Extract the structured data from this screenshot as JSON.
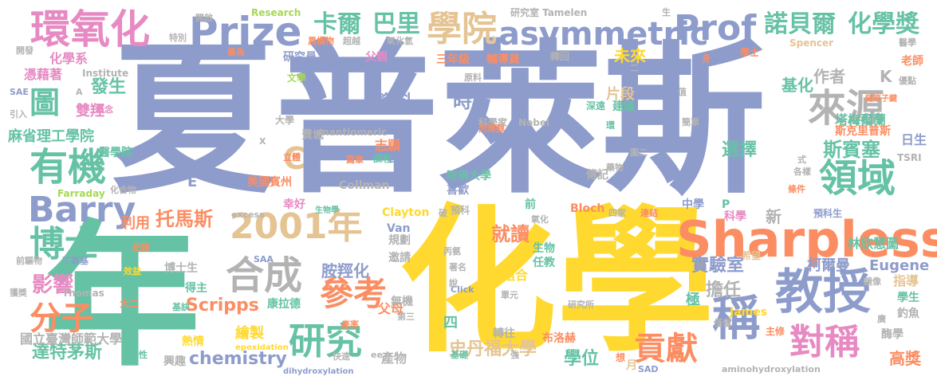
{
  "palette": {
    "blue": "#8e9ccb",
    "pink": "#e78ac3",
    "green": "#66c2a5",
    "orange": "#fc8d62",
    "yellow": "#ffd92f",
    "lime": "#a6d854",
    "tan": "#e5c494",
    "gray": "#b3b3b3"
  },
  "words": [
    {
      "text": "夏普萊斯",
      "color": "blue"
    },
    {
      "text": "化學",
      "color": "yellow"
    },
    {
      "text": "年",
      "color": "green"
    },
    {
      "text": "Sharpless",
      "color": "orange"
    },
    {
      "text": "2001年",
      "color": "tan"
    },
    {
      "text": "教授",
      "color": "blue"
    },
    {
      "text": "稱",
      "color": "blue"
    },
    {
      "text": "環氧化",
      "color": "pink"
    },
    {
      "text": "Prize",
      "color": "blue"
    },
    {
      "text": "asymmetric",
      "color": "blue"
    },
    {
      "text": "Prof",
      "color": "blue"
    },
    {
      "text": "學院",
      "color": "tan"
    },
    {
      "text": "有機",
      "color": "green"
    },
    {
      "text": "Barry",
      "color": "blue"
    },
    {
      "text": "博士",
      "color": "green"
    },
    {
      "text": "合成",
      "color": "gray"
    },
    {
      "text": "研究",
      "color": "green"
    },
    {
      "text": "領域",
      "color": "green"
    },
    {
      "text": "對稱",
      "color": "pink"
    },
    {
      "text": "來源",
      "color": "gray"
    },
    {
      "text": "參考",
      "color": "orange"
    },
    {
      "text": "分子",
      "color": "orange"
    },
    {
      "text": "貢獻",
      "color": "orange"
    },
    {
      "text": "卡爾",
      "color": "green"
    },
    {
      "text": "巴里",
      "color": "green"
    },
    {
      "text": "諾貝爾",
      "color": "green"
    },
    {
      "text": "化學獎",
      "color": "green"
    },
    {
      "text": "斯賓塞",
      "color": "green"
    },
    {
      "text": "選擇",
      "color": "green"
    },
    {
      "text": "圖",
      "color": "green"
    },
    {
      "text": "C",
      "color": "tan"
    },
    {
      "text": "麻省理工學院",
      "color": "green"
    },
    {
      "text": "托馬斯",
      "color": "orange"
    },
    {
      "text": "利用",
      "color": "orange"
    },
    {
      "text": "影響",
      "color": "pink"
    },
    {
      "text": "達特茅斯",
      "color": "green"
    },
    {
      "text": "Scripps",
      "color": "orange"
    },
    {
      "text": "胺羥化",
      "color": "blue"
    },
    {
      "text": "就讀",
      "color": "orange"
    },
    {
      "text": "史丹福大學",
      "color": "tan"
    },
    {
      "text": "學位",
      "color": "green"
    },
    {
      "text": "擔任",
      "color": "gray"
    },
    {
      "text": "實驗室",
      "color": "blue"
    },
    {
      "text": "柯爾曼",
      "color": "blue"
    },
    {
      "text": "Eugene",
      "color": "blue"
    },
    {
      "text": "chemistry",
      "color": "blue"
    },
    {
      "text": "國立臺灣師範大學",
      "color": "gray"
    },
    {
      "text": "高獎",
      "color": "orange"
    },
    {
      "text": "指導",
      "color": "tan"
    },
    {
      "text": "作者",
      "color": "gray"
    },
    {
      "text": "K",
      "color": "gray"
    },
    {
      "text": "塔梅爾蘭",
      "color": "green"
    },
    {
      "text": "斯克里普斯",
      "color": "orange"
    },
    {
      "text": "日生",
      "color": "blue"
    },
    {
      "text": "林欣慧圖",
      "color": "green"
    },
    {
      "text": "發生",
      "color": "green"
    },
    {
      "text": "雙羥",
      "color": "pink"
    },
    {
      "text": "資料",
      "color": "blue"
    },
    {
      "text": "時",
      "color": "blue"
    },
    {
      "text": "片段",
      "color": "tan"
    },
    {
      "text": "基化",
      "color": "green"
    },
    {
      "text": "未來",
      "color": "yellow"
    },
    {
      "text": "三年級",
      "color": "orange"
    },
    {
      "text": "輔導員",
      "color": "orange"
    },
    {
      "text": "研究員",
      "color": "blue"
    },
    {
      "text": "父親",
      "color": "pink"
    },
    {
      "text": "Konrad",
      "color": "blue"
    },
    {
      "text": "化學系",
      "color": "pink"
    },
    {
      "text": "憑藉著",
      "color": "pink"
    },
    {
      "text": "Research",
      "color": "lime"
    },
    {
      "text": "研究室 Tamelen",
      "color": "gray"
    },
    {
      "text": "Spencer",
      "color": "tan"
    },
    {
      "text": "學士",
      "color": "orange"
    },
    {
      "text": "老師",
      "color": "orange"
    },
    {
      "text": "Institute",
      "color": "gray"
    },
    {
      "text": "文學",
      "color": "lime"
    },
    {
      "text": "E",
      "color": "blue"
    },
    {
      "text": "費城",
      "color": "gray"
    },
    {
      "text": "大學",
      "color": "gray"
    },
    {
      "text": "美國賓州",
      "color": "orange"
    },
    {
      "text": "志願",
      "color": "orange"
    },
    {
      "text": "課程",
      "color": "green"
    },
    {
      "text": "回到",
      "color": "blue"
    },
    {
      "text": "喜歡",
      "color": "blue"
    },
    {
      "text": "哈佛大學",
      "color": "green"
    },
    {
      "text": "傳記",
      "color": "gray"
    },
    {
      "text": "Collman",
      "color": "gray"
    },
    {
      "text": "Farraday",
      "color": "lime"
    },
    {
      "text": "幸好",
      "color": "pink"
    },
    {
      "text": "Clayton",
      "color": "yellow"
    },
    {
      "text": "Van",
      "color": "blue"
    },
    {
      "text": "規劃",
      "color": "gray"
    },
    {
      "text": "邀請",
      "color": "gray"
    },
    {
      "text": "預科",
      "color": "gray"
    },
    {
      "text": "前",
      "color": "green"
    },
    {
      "text": "Bloch",
      "color": "orange"
    },
    {
      "text": "中學",
      "color": "blue"
    },
    {
      "text": "P",
      "color": "green"
    },
    {
      "text": "科學",
      "color": "pink"
    },
    {
      "text": "新",
      "color": "gray"
    },
    {
      "text": "預科生",
      "color": "blue"
    },
    {
      "text": "生物",
      "color": "green"
    },
    {
      "text": "任教",
      "color": "green"
    },
    {
      "text": "組合",
      "color": "yellow"
    },
    {
      "text": "極",
      "color": "green"
    },
    {
      "text": "James",
      "color": "yellow"
    },
    {
      "text": "學生",
      "color": "green"
    },
    {
      "text": "釣魚",
      "color": "gray"
    },
    {
      "text": "酶學",
      "color": "gray"
    },
    {
      "text": "主修",
      "color": "orange"
    },
    {
      "text": "希望",
      "color": "tan"
    },
    {
      "text": "四",
      "color": "green"
    },
    {
      "text": "父母",
      "color": "orange"
    },
    {
      "text": "無機",
      "color": "gray"
    },
    {
      "text": "轉往",
      "color": "gray"
    },
    {
      "text": "布洛赫",
      "color": "orange"
    },
    {
      "text": "產物",
      "color": "gray"
    },
    {
      "text": "繪製",
      "color": "yellow"
    },
    {
      "text": "康拉德",
      "color": "green"
    },
    {
      "text": "博士生",
      "color": "gray"
    },
    {
      "text": "得主",
      "color": "green"
    },
    {
      "text": "熱情",
      "color": "yellow"
    },
    {
      "text": "興趣",
      "color": "gray"
    },
    {
      "text": "Thomas",
      "color": "gray"
    },
    {
      "text": "Nobel",
      "color": "gray"
    },
    {
      "text": "科學家",
      "color": "gray"
    },
    {
      "text": "轉回",
      "color": "gray"
    },
    {
      "text": "深遠",
      "color": "green"
    },
    {
      "text": "建議",
      "color": "green"
    },
    {
      "text": "enantiomeric",
      "color": "gray"
    },
    {
      "text": "生物學",
      "color": "green"
    },
    {
      "text": "epoxidation",
      "color": "yellow"
    },
    {
      "text": "dihydroxylation",
      "color": "blue"
    },
    {
      "text": "aminohydroxylation",
      "color": "gray"
    },
    {
      "text": "研究所",
      "color": "gray"
    },
    {
      "text": "開啟",
      "color": "gray"
    },
    {
      "text": "開發",
      "color": "gray"
    },
    {
      "text": "特別",
      "color": "gray"
    },
    {
      "text": "最為",
      "color": "orange"
    },
    {
      "text": "異構物",
      "color": "orange"
    },
    {
      "text": "超越",
      "color": "gray"
    },
    {
      "text": "氧化氫",
      "color": "gray"
    },
    {
      "text": "SAE",
      "color": "blue"
    },
    {
      "text": "引入",
      "color": "gray"
    },
    {
      "text": "概念",
      "color": "pink"
    },
    {
      "text": "醫學院",
      "color": "green"
    },
    {
      "text": "化合物",
      "color": "gray"
    },
    {
      "text": "紀錄",
      "color": "orange"
    },
    {
      "text": "前驅物",
      "color": "gray"
    },
    {
      "text": "丁氧基",
      "color": "blue"
    },
    {
      "text": "效益",
      "color": "yellow"
    },
    {
      "text": "獲獎",
      "color": "gray"
    },
    {
      "text": "大二",
      "color": "orange"
    },
    {
      "text": "基訣",
      "color": "green"
    },
    {
      "text": "選擇性",
      "color": "green"
    },
    {
      "text": "excess",
      "color": "gray"
    },
    {
      "text": "SAA",
      "color": "blue"
    },
    {
      "text": "產率",
      "color": "orange"
    },
    {
      "text": "第三",
      "color": "gray"
    },
    {
      "text": "基礎",
      "color": "green"
    },
    {
      "text": "SAD",
      "color": "blue"
    },
    {
      "text": "Click",
      "color": "blue"
    },
    {
      "text": "著名",
      "color": "gray"
    },
    {
      "text": "丙氨",
      "color": "gray"
    },
    {
      "text": "單元",
      "color": "gray"
    },
    {
      "text": "醫學",
      "color": "gray"
    },
    {
      "text": "身",
      "color": "orange"
    },
    {
      "text": "優點",
      "color": "gray"
    },
    {
      "text": "鏈原子鍵",
      "color": "orange"
    },
    {
      "text": "丙烯醇",
      "color": "orange"
    },
    {
      "text": "簡單",
      "color": "gray"
    },
    {
      "text": "圖二",
      "color": "gray"
    },
    {
      "text": "藥物",
      "color": "gray"
    },
    {
      "text": "各樣",
      "color": "gray"
    },
    {
      "text": "條件",
      "color": "orange"
    },
    {
      "text": "TSRI",
      "color": "gray"
    },
    {
      "text": "連結",
      "color": "orange"
    },
    {
      "text": "四家",
      "color": "gray"
    },
    {
      "text": "氧化",
      "color": "gray"
    },
    {
      "text": "原料",
      "color": "gray"
    },
    {
      "text": "鏡像",
      "color": "gray"
    },
    {
      "text": "僅僅",
      "color": "gray"
    },
    {
      "text": "廣",
      "color": "gray"
    },
    {
      "text": "想",
      "color": "orange"
    },
    {
      "text": "強",
      "color": "gray"
    },
    {
      "text": "月",
      "color": "tan"
    },
    {
      "text": "環",
      "color": "green"
    },
    {
      "text": "值",
      "color": "gray"
    },
    {
      "text": "生",
      "color": "gray"
    },
    {
      "text": "二",
      "color": "gray"
    },
    {
      "text": "立體",
      "color": "orange"
    },
    {
      "text": "篇章",
      "color": "orange"
    },
    {
      "text": "快速",
      "color": "gray"
    },
    {
      "text": "說",
      "color": "gray"
    },
    {
      "text": "破",
      "color": "gray"
    },
    {
      "text": "ee",
      "color": "gray"
    },
    {
      "text": "A",
      "color": "gray"
    },
    {
      "text": "X",
      "color": "gray"
    },
    {
      "text": "式",
      "color": "gray"
    }
  ]
}
